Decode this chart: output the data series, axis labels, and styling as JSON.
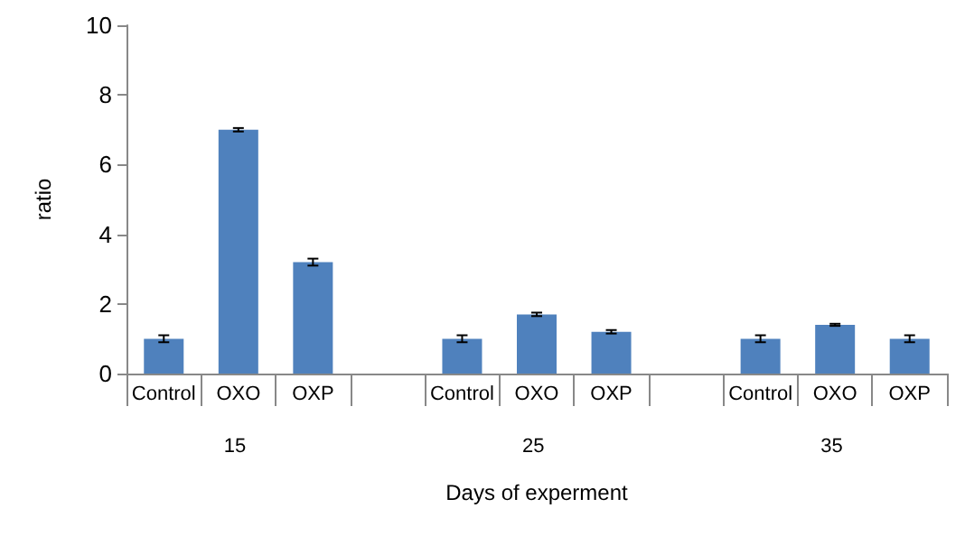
{
  "chart_data": {
    "type": "bar",
    "xlabel": "Days of experment",
    "ylabel": "ratio",
    "categories": [
      "Control",
      "OXO",
      "OXP",
      null,
      "Control",
      "OXO",
      "OXP",
      null,
      "Control",
      "OXO",
      "OXP"
    ],
    "values": [
      1.0,
      7.0,
      3.2,
      null,
      1.0,
      1.7,
      1.2,
      null,
      1.0,
      1.4,
      1.0
    ],
    "errors": [
      0.1,
      0.05,
      0.1,
      null,
      0.1,
      0.05,
      0.05,
      null,
      0.1,
      0.03,
      0.1
    ],
    "color": "#4f81bd",
    "ylim": [
      0,
      10
    ],
    "yticks": [
      0,
      2,
      4,
      6,
      8,
      10
    ],
    "grid": false,
    "annotations": [
      "15",
      "25",
      "35"
    ]
  }
}
